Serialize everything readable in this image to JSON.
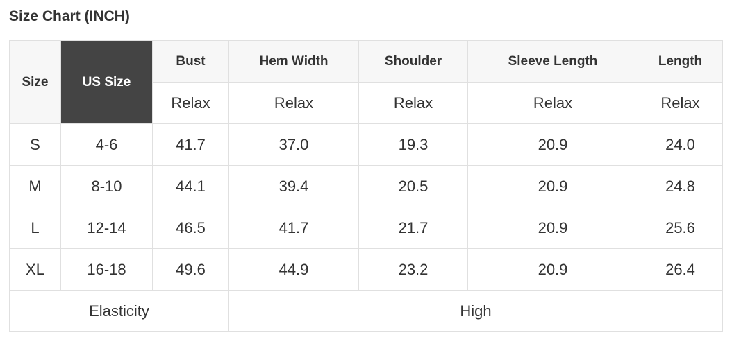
{
  "title": "Size Chart (INCH)",
  "header": {
    "size": "Size",
    "us_size": "US Size",
    "columns": [
      "Bust",
      "Hem Width",
      "Shoulder",
      "Sleeve Length",
      "Length"
    ],
    "fit": [
      "Relax",
      "Relax",
      "Relax",
      "Relax",
      "Relax"
    ]
  },
  "rows": [
    {
      "size": "S",
      "us": "4-6",
      "values": [
        "41.7",
        "37.0",
        "19.3",
        "20.9",
        "24.0"
      ]
    },
    {
      "size": "M",
      "us": "8-10",
      "values": [
        "44.1",
        "39.4",
        "20.5",
        "20.9",
        "24.8"
      ]
    },
    {
      "size": "L",
      "us": "12-14",
      "values": [
        "46.5",
        "41.7",
        "21.7",
        "20.9",
        "25.6"
      ]
    },
    {
      "size": "XL",
      "us": "16-18",
      "values": [
        "49.6",
        "44.9",
        "23.2",
        "20.9",
        "26.4"
      ]
    }
  ],
  "elasticity": {
    "label": "Elasticity",
    "value": "High"
  },
  "colors": {
    "header_bg": "#f7f7f7",
    "us_size_bg": "#444444",
    "border": "#e0e0e0"
  }
}
